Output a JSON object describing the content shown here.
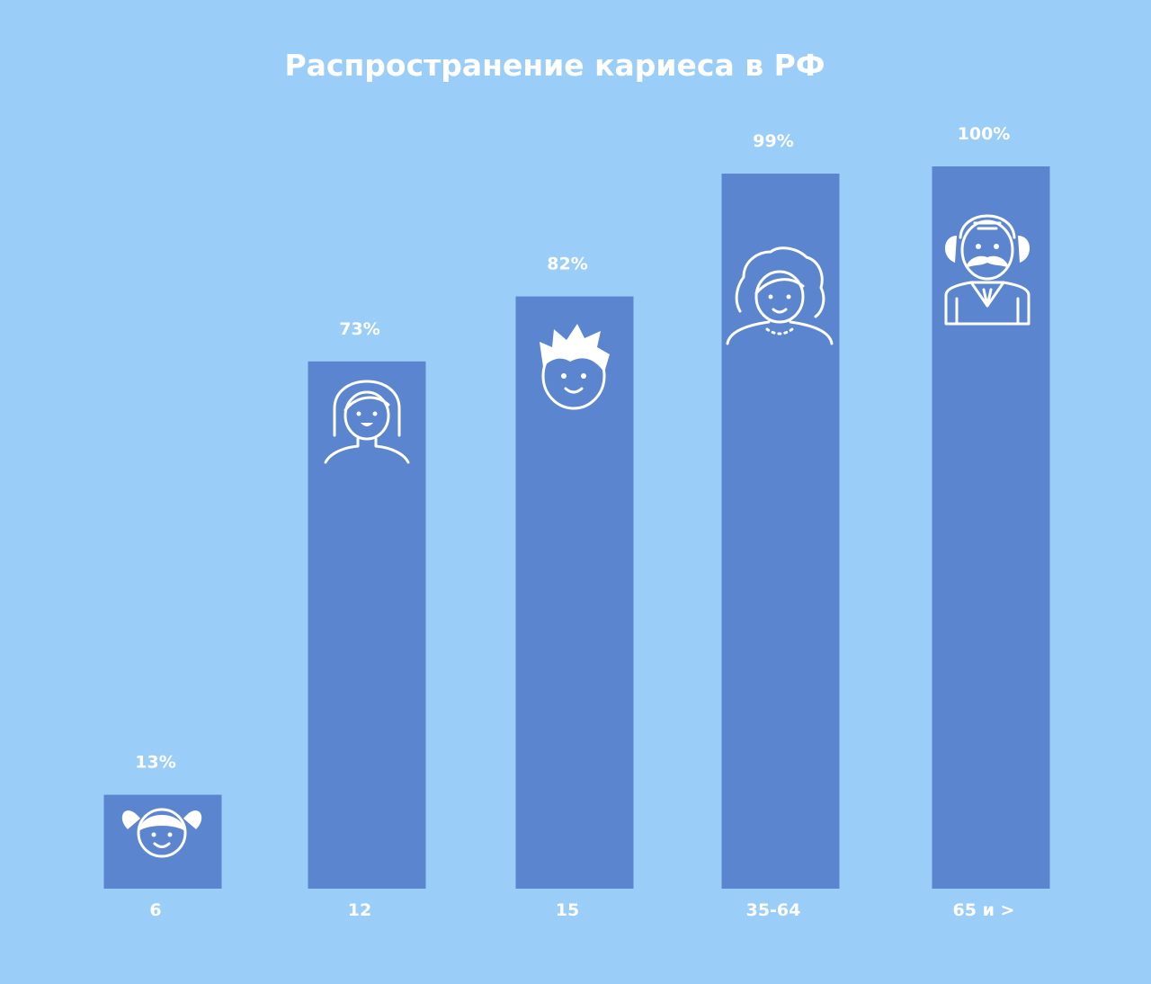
{
  "chart_data": {
    "type": "bar",
    "title": "Распространение кариеса в РФ",
    "categories": [
      "6",
      "12",
      "15",
      "35-64",
      "65 и >"
    ],
    "values": [
      13,
      73,
      82,
      99,
      100
    ],
    "value_labels": [
      "13%",
      "73%",
      "82%",
      "99%",
      "100%"
    ],
    "ylim": [
      0,
      100
    ],
    "grid": false,
    "legend": "none",
    "icons": [
      "girl-pigtails-icon",
      "girl-long-hair-icon",
      "boy-spiky-hair-icon",
      "woman-curly-hair-icon",
      "old-man-mustache-icon"
    ],
    "colors": {
      "background": "#9ACDF8",
      "bar": "#5B86CF",
      "text": "#FFFFFF"
    }
  }
}
